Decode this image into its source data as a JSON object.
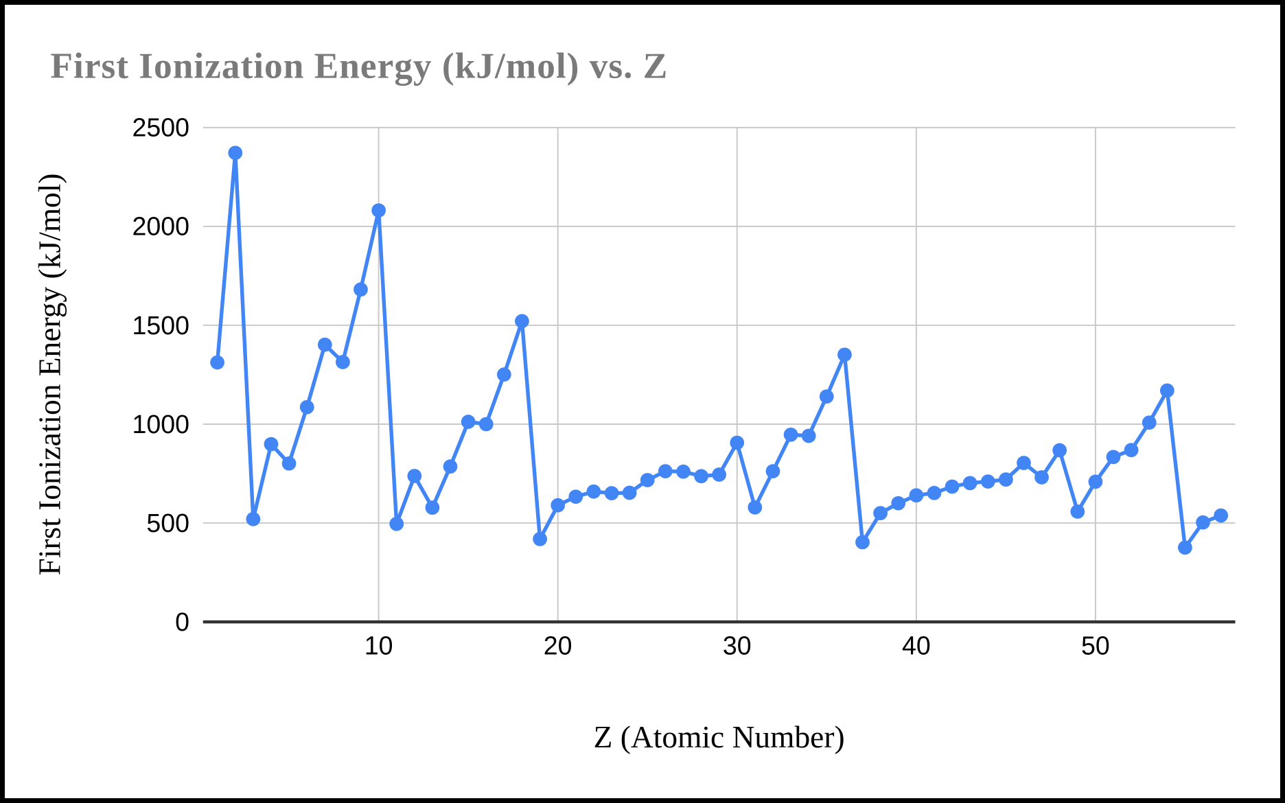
{
  "frame": {
    "background_color": "#ffffff",
    "border_color": "#000000"
  },
  "chart": {
    "title_color": "#7a7a7a",
    "axis_text_color": "#000000",
    "gridline_color": "#c9c9c9",
    "baseline_color": "#333333",
    "series_color": "#4285f4"
  },
  "chart_data": {
    "type": "line",
    "title": "First Ionization Energy (kJ/mol) vs. Z",
    "xlabel": "Z (Atomic Number)",
    "ylabel": "First Ionization Energy (kJ/mol)",
    "series": [
      {
        "name": "First Ionization Energy (kJ/mol)",
        "x": [
          1,
          2,
          3,
          4,
          5,
          6,
          7,
          8,
          9,
          10,
          11,
          12,
          13,
          14,
          15,
          16,
          17,
          18,
          19,
          20,
          21,
          22,
          23,
          24,
          25,
          26,
          27,
          28,
          29,
          30,
          31,
          32,
          33,
          34,
          35,
          36,
          37,
          38,
          39,
          40,
          41,
          42,
          43,
          44,
          45,
          46,
          47,
          48,
          49,
          50,
          51,
          52,
          53,
          54,
          55,
          56,
          57
        ],
        "values": [
          1312,
          2372,
          520,
          899,
          801,
          1086,
          1402,
          1314,
          1681,
          2081,
          496,
          738,
          578,
          786,
          1012,
          1000,
          1251,
          1521,
          419,
          590,
          633,
          659,
          651,
          653,
          717,
          762,
          760,
          737,
          745,
          906,
          579,
          762,
          947,
          941,
          1140,
          1351,
          403,
          550,
          600,
          640,
          652,
          684,
          702,
          710,
          720,
          804,
          731,
          868,
          558,
          709,
          834,
          869,
          1008,
          1170,
          376,
          503,
          538
        ]
      }
    ],
    "xlim": [
      0.2,
      57.8
    ],
    "ylim": [
      0,
      2500
    ],
    "x_ticks": [
      10,
      20,
      30,
      40,
      50
    ],
    "y_ticks": [
      0,
      500,
      1000,
      1500,
      2000,
      2500
    ],
    "grid": true,
    "legend_position": "none",
    "marker": "circle",
    "line_style": "solid"
  }
}
